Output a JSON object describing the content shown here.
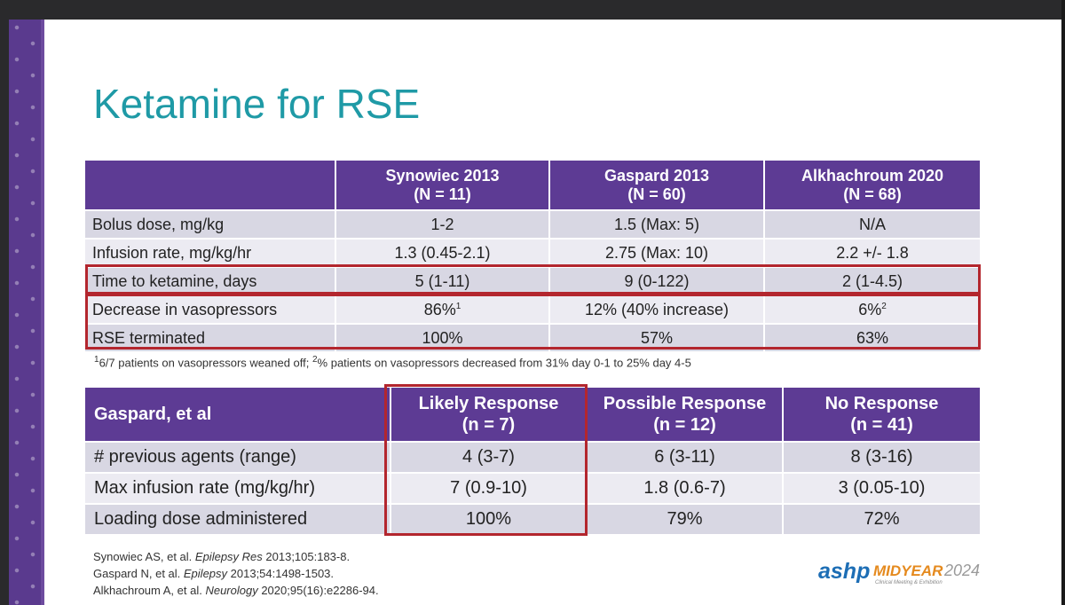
{
  "slide": {
    "title": "Ketamine for RSE"
  },
  "table1": {
    "headers": [
      {
        "line1": "",
        "line2": ""
      },
      {
        "line1": "Synowiec 2013",
        "line2": "(N = 11)"
      },
      {
        "line1": "Gaspard 2013",
        "line2": "(N = 60)"
      },
      {
        "line1": "Alkhachroum 2020",
        "line2": "(N = 68)"
      }
    ],
    "rows": [
      [
        "Bolus dose, mg/kg",
        "1-2",
        "1.5 (Max: 5)",
        "N/A"
      ],
      [
        "Infusion rate, mg/kg/hr",
        "1.3 (0.45-2.1)",
        "2.75 (Max: 10)",
        "2.2 +/- 1.8"
      ],
      [
        "Time to ketamine, days",
        "5 (1-11)",
        "9 (0-122)",
        "2 (1-4.5)"
      ],
      [
        "Decrease in vasopressors",
        "86%",
        "12% (40% increase)",
        "6%"
      ],
      [
        "RSE terminated",
        "100%",
        "57%",
        "63%"
      ]
    ],
    "superscripts": {
      "synowiec": "1",
      "alkhachroum": "2"
    },
    "footnote": {
      "sup1": "1",
      "part1": "6/7 patients on vasopressors weaned off; ",
      "sup2": "2",
      "part2": "% patients on vasopressors decreased from 31% day 0-1 to 25% day 4-5"
    }
  },
  "table2": {
    "headers": [
      {
        "line1": "Gaspard, et al",
        "line2": ""
      },
      {
        "line1": "Likely Response",
        "line2": "(n = 7)"
      },
      {
        "line1": "Possible Response",
        "line2": "(n = 12)"
      },
      {
        "line1": "No Response",
        "line2": "(n = 41)"
      }
    ],
    "rows": [
      [
        "# previous agents (range)",
        "4 (3-7)",
        "6 (3-11)",
        "8 (3-16)"
      ],
      [
        "Max infusion rate (mg/kg/hr)",
        "7 (0.9-10)",
        "1.8 (0.6-7)",
        "3 (0.05-10)"
      ],
      [
        "Loading dose administered",
        "100%",
        "79%",
        "72%"
      ]
    ]
  },
  "references": [
    {
      "pre": "Synowiec AS, et al. ",
      "journal": "Epilepsy Res",
      "post": " 2013;105:183-8."
    },
    {
      "pre": "Gaspard N, et al. ",
      "journal": "Epilepsy",
      "post": " 2013;54:1498-1503."
    },
    {
      "pre": "Alkhachroum A, et al. ",
      "journal": "Neurology",
      "post": " 2020;95(16):e2286-94."
    }
  ],
  "logo": {
    "brand": "ashp",
    "midyear": "MIDYEAR",
    "year": "2024",
    "tagline": "Clinical Meeting & Exhibition"
  },
  "colors": {
    "title": "#1f9aa6",
    "header_bg": "#5d3b94",
    "highlight_box": "#b3262e"
  }
}
